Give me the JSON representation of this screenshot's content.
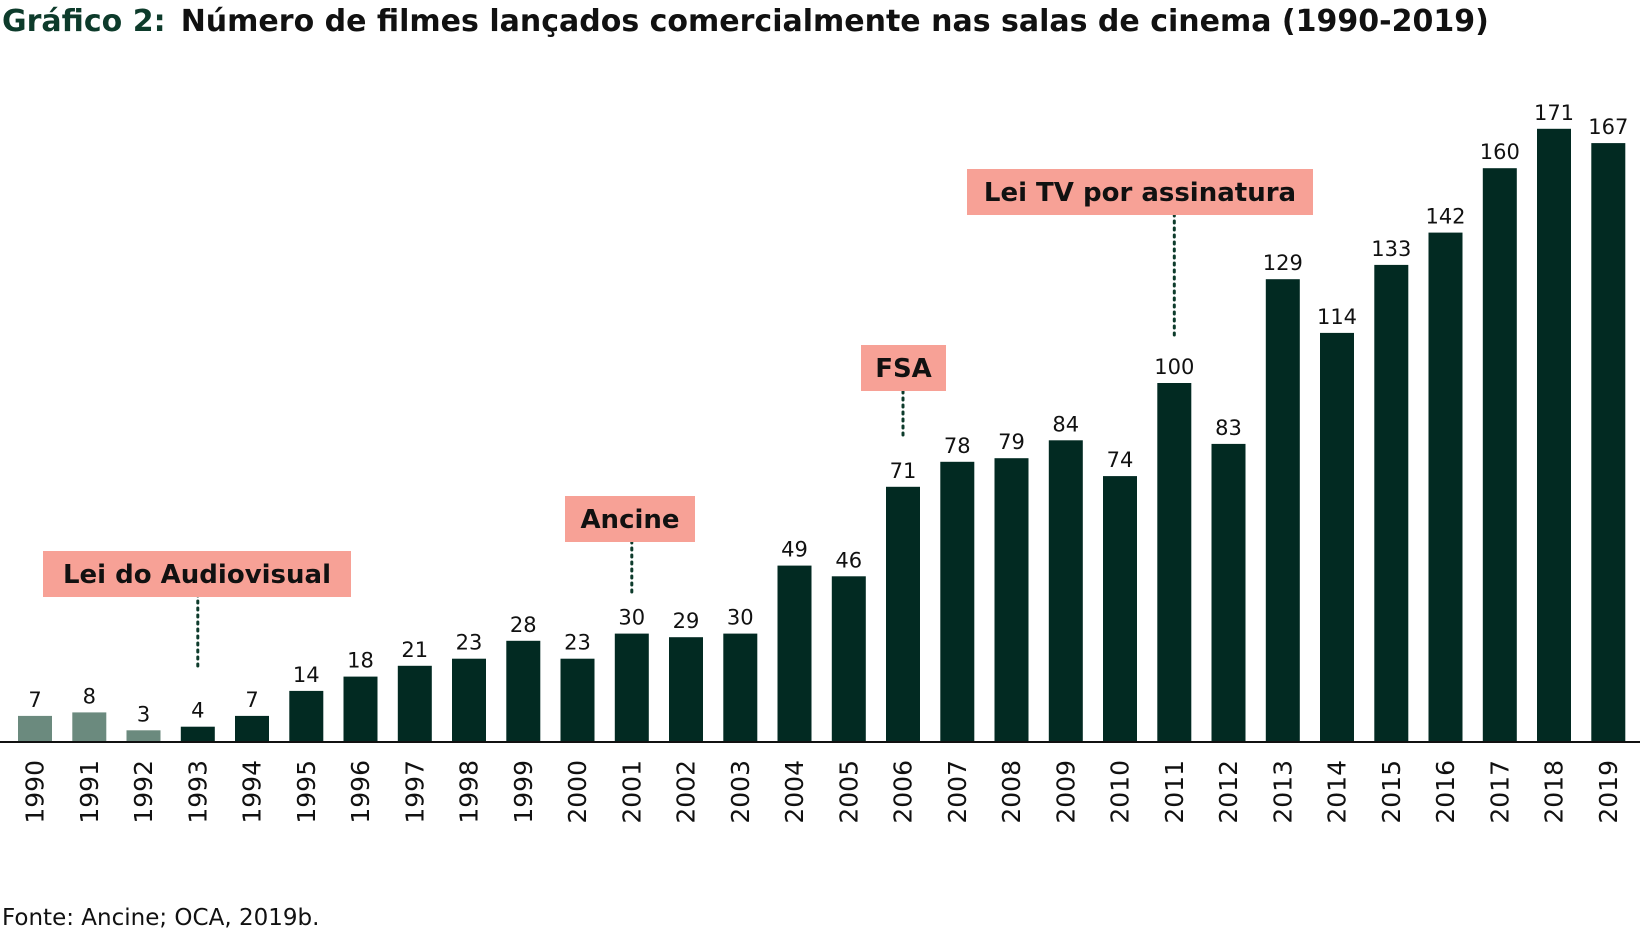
{
  "colors": {
    "bar": "#022a22",
    "bar_muted": "#6b8a7e",
    "title_prefix": "#0d3b2b",
    "title_text": "#111111",
    "annotation_bg": "#f7a196",
    "annotation_text": "#111111",
    "dotted_line": "#0d3b2b",
    "axis": "#111111"
  },
  "chart_data": {
    "type": "bar",
    "title_prefix": "Gráfico 2:",
    "title": "Número de filmes lançados comercialmente nas salas de cinema (1990-2019)",
    "xlabel": "",
    "ylabel": "",
    "ylim": [
      0,
      185
    ],
    "grid": false,
    "legend": "none",
    "categories": [
      "1990",
      "1991",
      "1992",
      "1993",
      "1994",
      "1995",
      "1996",
      "1997",
      "1998",
      "1999",
      "2000",
      "2001",
      "2002",
      "2003",
      "2004",
      "2005",
      "2006",
      "2007",
      "2008",
      "2009",
      "2010",
      "2011",
      "2012",
      "2013",
      "2014",
      "2015",
      "2016",
      "2017",
      "2018",
      "2019"
    ],
    "values": [
      7,
      8,
      3,
      4,
      7,
      14,
      18,
      21,
      23,
      28,
      23,
      30,
      29,
      30,
      49,
      46,
      71,
      78,
      79,
      84,
      74,
      100,
      83,
      129,
      114,
      133,
      142,
      160,
      171,
      167
    ],
    "muted_categories": [
      "1990",
      "1991",
      "1992"
    ],
    "annotations": [
      {
        "label": "Lei do Audiovisual",
        "category": "1993"
      },
      {
        "label": "Ancine",
        "category": "2001"
      },
      {
        "label": "FSA",
        "category": "2006"
      },
      {
        "label": "Lei TV por assinatura",
        "category": "2011"
      }
    ],
    "source": "Fonte: Ancine; OCA, 2019b."
  }
}
